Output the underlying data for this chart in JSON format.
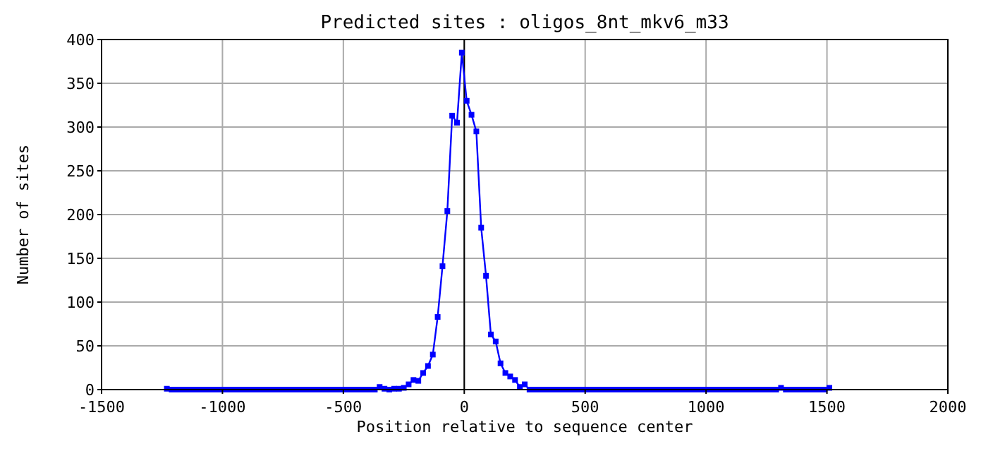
{
  "chart_data": {
    "type": "line",
    "title": "Predicted sites : oligos_8nt_mkv6_m33",
    "xlabel": "Position relative to sequence center",
    "ylabel": "Number of sites",
    "x": [
      -1230,
      -1210,
      -1190,
      -1170,
      -1150,
      -1130,
      -1110,
      -1090,
      -1070,
      -1050,
      -1030,
      -1010,
      -990,
      -970,
      -950,
      -930,
      -910,
      -890,
      -870,
      -850,
      -830,
      -810,
      -790,
      -770,
      -750,
      -730,
      -710,
      -690,
      -670,
      -650,
      -630,
      -610,
      -590,
      -570,
      -550,
      -530,
      -510,
      -490,
      -470,
      -450,
      -430,
      -410,
      -390,
      -370,
      -350,
      -330,
      -310,
      -290,
      -270,
      -250,
      -230,
      -210,
      -190,
      -170,
      -150,
      -130,
      -110,
      -90,
      -70,
      -50,
      -30,
      -10,
      10,
      30,
      50,
      70,
      90,
      110,
      130,
      150,
      170,
      190,
      210,
      230,
      250,
      270,
      290,
      310,
      330,
      350,
      370,
      390,
      410,
      430,
      450,
      470,
      490,
      510,
      530,
      550,
      570,
      590,
      610,
      630,
      650,
      670,
      690,
      710,
      730,
      750,
      770,
      790,
      810,
      830,
      850,
      870,
      890,
      910,
      930,
      950,
      970,
      990,
      1010,
      1030,
      1050,
      1070,
      1090,
      1110,
      1130,
      1150,
      1170,
      1190,
      1210,
      1230,
      1250,
      1270,
      1290,
      1310,
      1330,
      1350,
      1370,
      1390,
      1410,
      1430,
      1450,
      1470,
      1490,
      1510
    ],
    "series": [
      {
        "color": "#0000ff",
        "values": [
          1,
          0,
          0,
          0,
          0,
          0,
          0,
          0,
          0,
          0,
          0,
          0,
          0,
          0,
          0,
          0,
          0,
          0,
          0,
          0,
          0,
          0,
          0,
          0,
          0,
          0,
          0,
          0,
          0,
          0,
          0,
          0,
          0,
          0,
          0,
          0,
          0,
          0,
          0,
          0,
          0,
          0,
          0,
          0,
          3,
          1,
          0,
          1,
          1,
          2,
          6,
          11,
          10,
          19,
          27,
          40,
          83,
          141,
          204,
          313,
          305,
          385,
          330,
          314,
          295,
          185,
          130,
          63,
          55,
          30,
          19,
          15,
          11,
          3,
          6,
          0,
          0,
          0,
          0,
          0,
          0,
          0,
          0,
          0,
          0,
          0,
          0,
          0,
          0,
          0,
          0,
          0,
          0,
          0,
          0,
          0,
          0,
          0,
          0,
          0,
          0,
          0,
          0,
          0,
          0,
          0,
          0,
          0,
          0,
          0,
          0,
          0,
          0,
          0,
          0,
          0,
          0,
          0,
          0,
          0,
          0,
          0,
          0,
          0,
          0,
          0,
          0,
          2,
          0,
          0,
          0,
          0,
          0,
          0,
          0,
          0,
          0,
          2
        ]
      }
    ],
    "xlim": [
      -1500,
      2000
    ],
    "xticks": [
      -1500,
      -1000,
      -500,
      0,
      500,
      1000,
      1500,
      2000
    ],
    "ylim": [
      0,
      400
    ],
    "yticks": [
      0,
      50,
      100,
      150,
      200,
      250,
      300,
      350,
      400
    ],
    "ref_lines": [
      {
        "axis": "x",
        "value": 0,
        "color": "#000000"
      }
    ],
    "grid": true,
    "marker": "square",
    "line_style": "solid"
  }
}
